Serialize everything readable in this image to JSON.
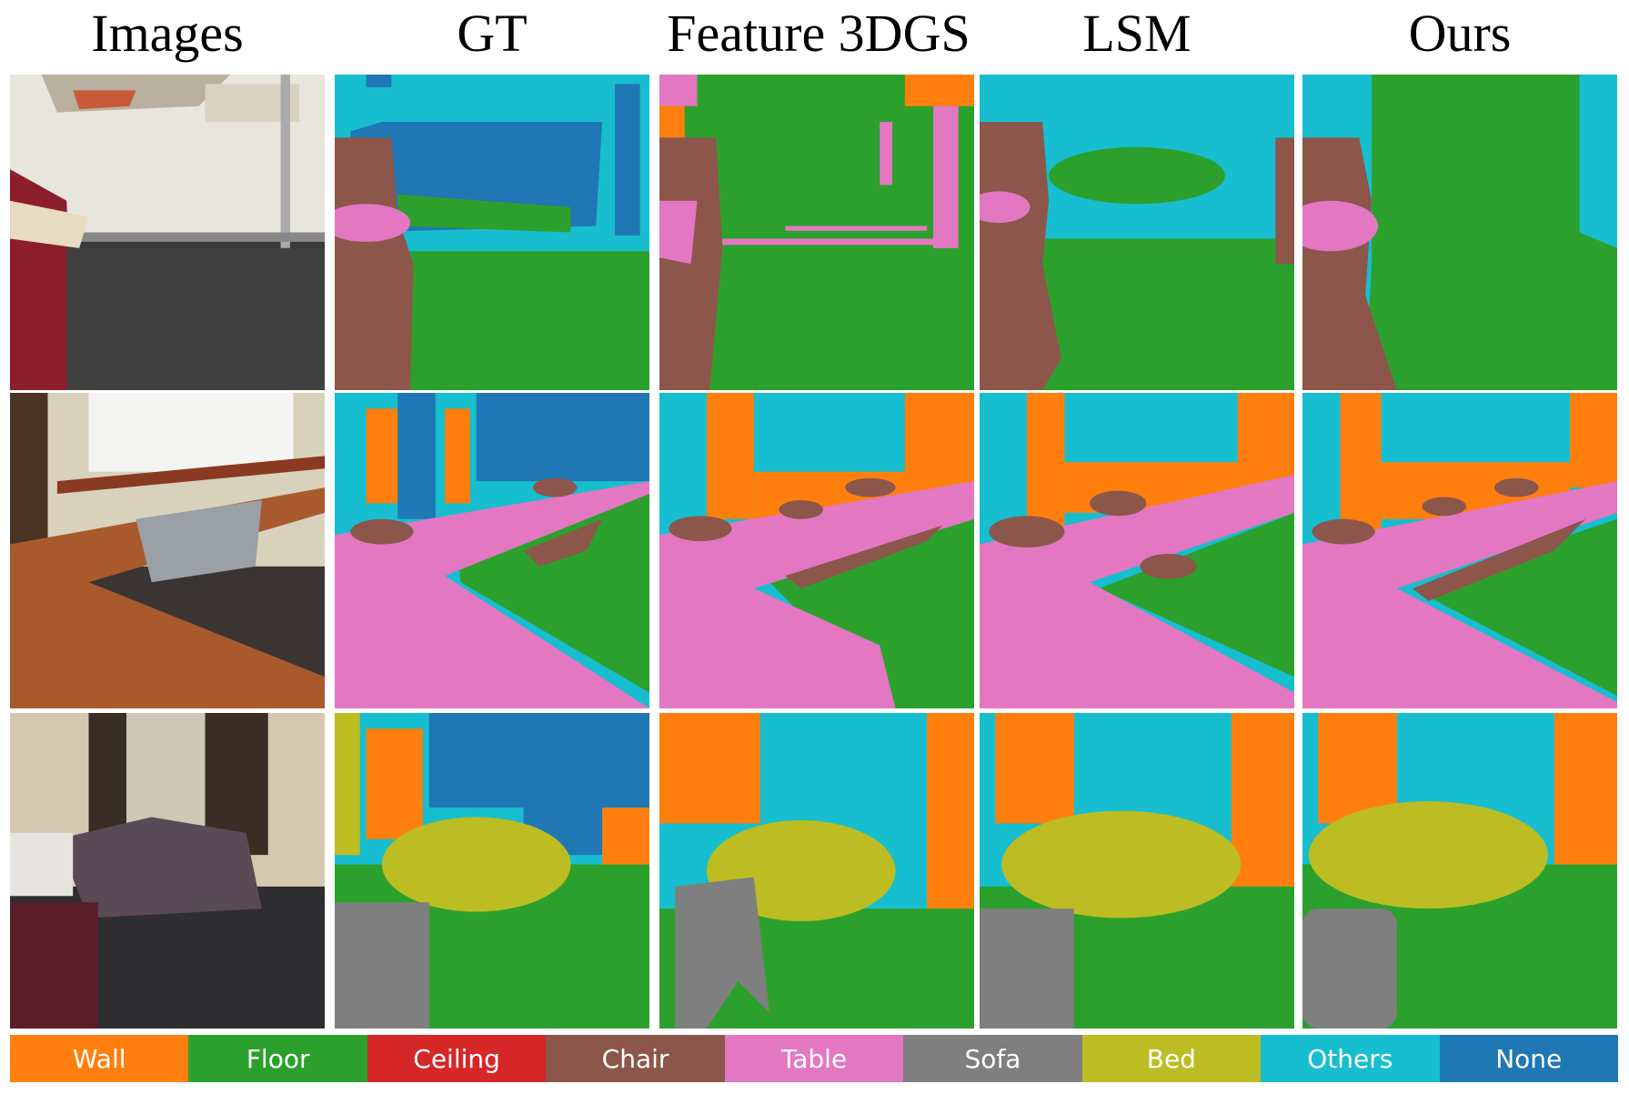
{
  "figure": {
    "column_headers": [
      "Images",
      "GT",
      "Feature 3DGS",
      "LSM",
      "Ours"
    ],
    "legend": [
      {
        "label": "Wall",
        "color": "#ff7f0e"
      },
      {
        "label": "Floor",
        "color": "#2ca02c"
      },
      {
        "label": "Ceiling",
        "color": "#d62728"
      },
      {
        "label": "Chair",
        "color": "#8c564b"
      },
      {
        "label": "Table",
        "color": "#e377c2"
      },
      {
        "label": "Sofa",
        "color": "#7f7f7f"
      },
      {
        "label": "Bed",
        "color": "#bcbd22"
      },
      {
        "label": "Others",
        "color": "#17becf"
      },
      {
        "label": "None",
        "color": "#1f77b4"
      }
    ]
  }
}
